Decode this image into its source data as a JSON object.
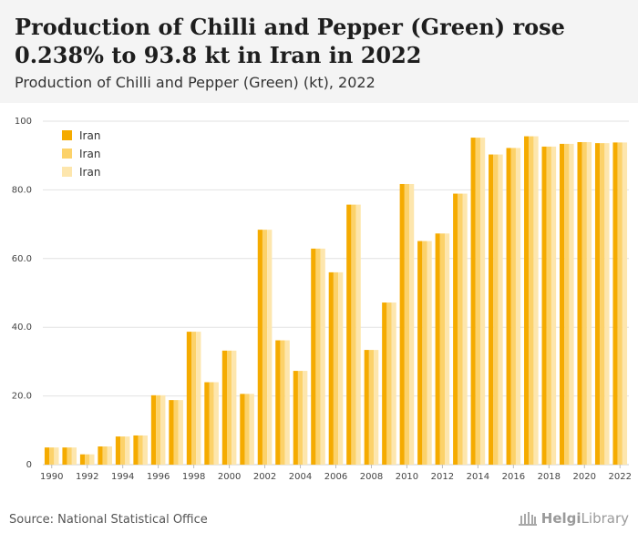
{
  "header": {
    "title": "Production of Chilli and Pepper (Green) rose 0.238% to 93.8 kt in Iran in 2022",
    "subtitle": "Production of Chilli and Pepper (Green) (kt), 2022"
  },
  "footer": {
    "source": "Source: National Statistical Office",
    "logo_text_bold": "Helgi",
    "logo_text_rest": "Library"
  },
  "chart_data": {
    "type": "bar",
    "categories": [
      1990,
      1991,
      1992,
      1993,
      1994,
      1995,
      1996,
      1997,
      1998,
      1999,
      2000,
      2001,
      2002,
      2003,
      2004,
      2005,
      2006,
      2007,
      2008,
      2009,
      2010,
      2011,
      2012,
      2013,
      2014,
      2015,
      2016,
      2017,
      2018,
      2019,
      2020,
      2021,
      2022
    ],
    "x_tick_labels": [
      "1990",
      "1992",
      "1994",
      "1996",
      "1998",
      "2000",
      "2002",
      "2004",
      "2006",
      "2008",
      "2010",
      "2012",
      "2014",
      "2016",
      "2018",
      "2020",
      "2022"
    ],
    "series": [
      {
        "name": "Iran",
        "color": "#f5ab00",
        "values": [
          5.0,
          5.0,
          3.0,
          5.3,
          8.2,
          8.5,
          20.2,
          18.8,
          38.7,
          24.0,
          33.2,
          20.6,
          68.4,
          36.2,
          27.3,
          62.9,
          56.0,
          75.7,
          33.4,
          47.2,
          81.7,
          65.1,
          67.3,
          78.9,
          95.2,
          90.3,
          92.2,
          95.6,
          92.6,
          93.4,
          93.9,
          93.6,
          93.8
        ]
      },
      {
        "name": "Iran",
        "color": "#fcd26a",
        "values": [
          5.0,
          5.0,
          3.0,
          5.3,
          8.2,
          8.5,
          20.2,
          18.8,
          38.7,
          24.0,
          33.2,
          20.6,
          68.4,
          36.2,
          27.3,
          62.9,
          56.0,
          75.7,
          33.4,
          47.2,
          81.7,
          65.1,
          67.3,
          78.9,
          95.2,
          90.3,
          92.2,
          95.6,
          92.6,
          93.4,
          93.9,
          93.6,
          93.8
        ]
      },
      {
        "name": "Iran",
        "color": "#fde6ad",
        "values": [
          5.0,
          5.0,
          3.0,
          5.3,
          8.2,
          8.5,
          20.2,
          18.8,
          38.7,
          24.0,
          33.2,
          20.6,
          68.4,
          36.2,
          27.3,
          62.9,
          56.0,
          75.7,
          33.4,
          47.2,
          81.7,
          65.1,
          67.3,
          78.9,
          95.2,
          90.3,
          92.2,
          95.6,
          92.6,
          93.4,
          93.9,
          93.6,
          93.8
        ]
      }
    ],
    "ylim": [
      0,
      100
    ],
    "y_ticks": [
      0,
      20,
      40,
      60,
      80,
      100
    ],
    "y_tick_labels": [
      "0",
      "20.0",
      "40.0",
      "60.0",
      "80.0",
      "100"
    ],
    "grid": true,
    "legend_position": "top-left"
  }
}
